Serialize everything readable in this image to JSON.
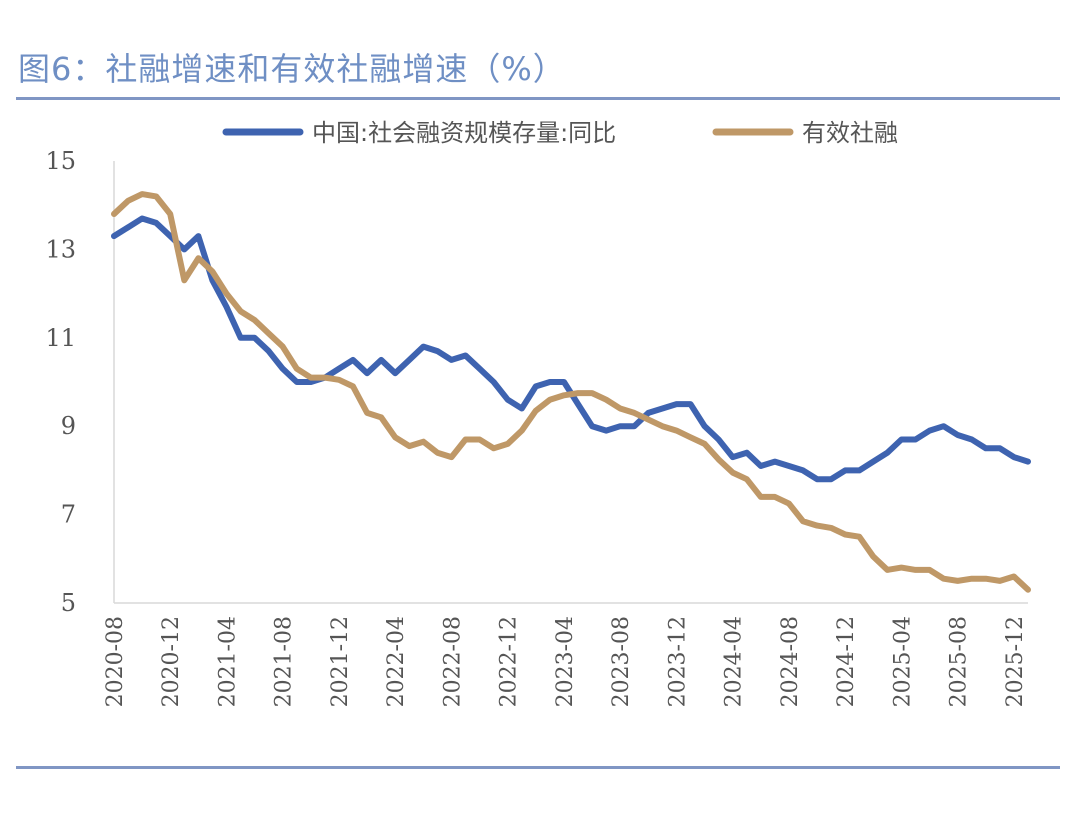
{
  "figure_title": "图6：社融增速和有效社融增速（%）",
  "colors": {
    "series1": "#3e63b0",
    "series2": "#bf9867",
    "rule": "#8096c4",
    "title": "#6f8fc4"
  },
  "chart_data": {
    "type": "line",
    "title": "图6：社融增速和有效社融增速（%）",
    "xlabel": "",
    "ylabel": "",
    "ylim": [
      5,
      15
    ],
    "yticks": [
      5,
      7,
      9,
      11,
      13,
      15
    ],
    "legend_position": "top",
    "grid": false,
    "x": [
      "2020-08",
      "2020-09",
      "2020-10",
      "2020-11",
      "2020-12",
      "2021-01",
      "2021-02",
      "2021-03",
      "2021-04",
      "2021-05",
      "2021-06",
      "2021-07",
      "2021-08",
      "2021-09",
      "2021-10",
      "2021-11",
      "2021-12",
      "2022-01",
      "2022-02",
      "2022-03",
      "2022-04",
      "2022-05",
      "2022-06",
      "2022-07",
      "2022-08",
      "2022-09",
      "2022-10",
      "2022-11",
      "2022-12",
      "2023-01",
      "2023-02",
      "2023-03",
      "2023-04",
      "2023-05",
      "2023-06",
      "2023-07",
      "2023-08",
      "2023-09",
      "2023-10",
      "2023-11",
      "2023-12",
      "2024-01",
      "2024-02",
      "2024-03",
      "2024-04",
      "2024-05",
      "2024-06",
      "2024-07",
      "2024-08",
      "2024-09",
      "2024-10",
      "2024-11",
      "2024-12",
      "2025-01",
      "2025-02",
      "2025-03",
      "2025-04",
      "2025-05",
      "2025-06",
      "2025-07",
      "2025-08",
      "2025-09",
      "2025-10",
      "2025-11",
      "2025-12",
      "2026-01"
    ],
    "xtick_labels": [
      "2020-08",
      "2020-12",
      "2021-04",
      "2021-08",
      "2021-12",
      "2022-04",
      "2022-08",
      "2022-12",
      "2023-04",
      "2023-08",
      "2023-12",
      "2024-04",
      "2024-08",
      "2024-12",
      "2025-04",
      "2025-08",
      "2025-12"
    ],
    "series": [
      {
        "name": "中国:社会融资规模存量:同比",
        "values": [
          13.3,
          13.5,
          13.7,
          13.6,
          13.3,
          13.0,
          13.3,
          12.3,
          11.7,
          11.0,
          11.0,
          10.7,
          10.3,
          10.0,
          10.0,
          10.1,
          10.3,
          10.5,
          10.2,
          10.5,
          10.2,
          10.5,
          10.8,
          10.7,
          10.5,
          10.6,
          10.3,
          10.0,
          9.6,
          9.4,
          9.9,
          10.0,
          10.0,
          9.5,
          9.0,
          8.9,
          9.0,
          9.0,
          9.3,
          9.4,
          9.5,
          9.5,
          9.0,
          8.7,
          8.3,
          8.4,
          8.1,
          8.2,
          8.1,
          8.0,
          7.8,
          7.8,
          8.0,
          8.0,
          8.2,
          8.4,
          8.7,
          8.7,
          8.9,
          9.0,
          8.8,
          8.7,
          8.5,
          8.5,
          8.3,
          8.2
        ]
      },
      {
        "name": "有效社融",
        "values": [
          13.8,
          14.1,
          14.25,
          14.2,
          13.8,
          12.3,
          12.8,
          12.5,
          12.0,
          11.6,
          11.4,
          11.1,
          10.8,
          10.3,
          10.1,
          10.1,
          10.05,
          9.9,
          9.3,
          9.2,
          8.75,
          8.55,
          8.65,
          8.4,
          8.3,
          8.7,
          8.7,
          8.5,
          8.6,
          8.9,
          9.35,
          9.6,
          9.7,
          9.75,
          9.75,
          9.6,
          9.4,
          9.3,
          9.15,
          9.0,
          8.9,
          8.75,
          8.6,
          8.25,
          7.95,
          7.8,
          7.4,
          7.4,
          7.25,
          6.85,
          6.75,
          6.7,
          6.55,
          6.5,
          6.05,
          5.75,
          5.8,
          5.75,
          5.75,
          5.55,
          5.5,
          5.55,
          5.55,
          5.5,
          5.6,
          5.3
        ]
      }
    ]
  }
}
